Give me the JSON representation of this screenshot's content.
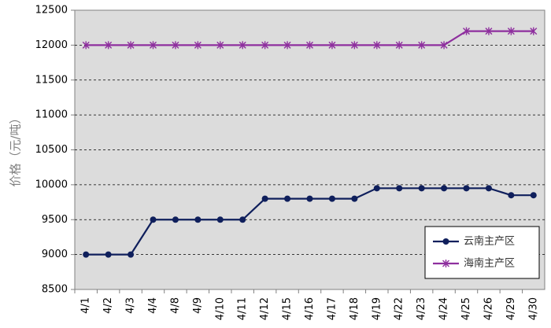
{
  "chart_data": {
    "type": "line",
    "ylabel": "价格（元/吨）",
    "xlabel": "",
    "ylim": [
      8500,
      12500
    ],
    "yticks": [
      8500,
      9000,
      9500,
      10000,
      10500,
      11000,
      11500,
      12000,
      12500
    ],
    "categories": [
      "4/1",
      "4/2",
      "4/3",
      "4/4",
      "4/8",
      "4/9",
      "4/10",
      "4/11",
      "4/12",
      "4/15",
      "4/16",
      "4/17",
      "4/18",
      "4/19",
      "4/22",
      "4/23",
      "4/24",
      "4/25",
      "4/26",
      "4/29",
      "4/30"
    ],
    "series": [
      {
        "name": "云南主产区",
        "color": "#0f1f5c",
        "marker": "circle",
        "values": [
          9000,
          9000,
          9000,
          9500,
          9500,
          9500,
          9500,
          9500,
          9800,
          9800,
          9800,
          9800,
          9800,
          9950,
          9950,
          9950,
          9950,
          9950,
          9950,
          9850,
          9850
        ]
      },
      {
        "name": "海南主产区",
        "color": "#8e2f9e",
        "marker": "asterisk",
        "values": [
          12000,
          12000,
          12000,
          12000,
          12000,
          12000,
          12000,
          12000,
          12000,
          12000,
          12000,
          12000,
          12000,
          12000,
          12000,
          12000,
          12000,
          12200,
          12200,
          12200,
          12200
        ]
      }
    ],
    "grid": true,
    "legend_position": "bottom-right",
    "plot_background": "#dcdcdc"
  }
}
